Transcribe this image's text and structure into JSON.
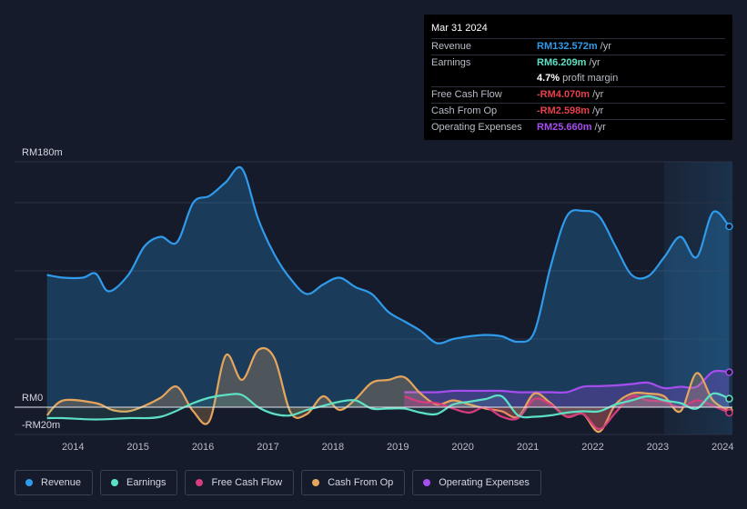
{
  "tooltip": {
    "date": "Mar 31 2024",
    "rows": [
      {
        "label": "Revenue",
        "value": "RM132.572m",
        "unit": "/yr",
        "color": "#2f9bea"
      },
      {
        "label": "Earnings",
        "value": "RM6.209m",
        "unit": "/yr",
        "color": "#5ee0c5"
      },
      {
        "label": "",
        "value": "4.7%",
        "unit": "profit margin",
        "color": "#ffffff"
      },
      {
        "label": "Free Cash Flow",
        "value": "-RM4.070m",
        "unit": "/yr",
        "color": "#e5414a"
      },
      {
        "label": "Cash From Op",
        "value": "-RM2.598m",
        "unit": "/yr",
        "color": "#e5414a"
      },
      {
        "label": "Operating Expenses",
        "value": "RM25.660m",
        "unit": "/yr",
        "color": "#a64df0"
      }
    ]
  },
  "legend": [
    {
      "label": "Revenue",
      "color": "#2f9bea"
    },
    {
      "label": "Earnings",
      "color": "#5ee0c5"
    },
    {
      "label": "Free Cash Flow",
      "color": "#d63d7f"
    },
    {
      "label": "Cash From Op",
      "color": "#e6a55c"
    },
    {
      "label": "Operating Expenses",
      "color": "#a64df0"
    }
  ],
  "chart_data": {
    "type": "line",
    "title": "",
    "ylim": [
      -20,
      180
    ],
    "y_tick_labels": [
      "RM180m",
      "RM0",
      "-RM20m"
    ],
    "x_tick_labels": [
      "2014",
      "2015",
      "2016",
      "2017",
      "2018",
      "2019",
      "2020",
      "2021",
      "2022",
      "2023",
      "2024"
    ],
    "x_range": [
      2013.25,
      2024.3
    ],
    "highlight_start": 2023.25,
    "series": [
      {
        "name": "Revenue",
        "color": "#2f9bea",
        "x": [
          2013.75,
          2014.0,
          2014.3,
          2014.5,
          2014.7,
          2015.0,
          2015.25,
          2015.5,
          2015.75,
          2016.0,
          2016.25,
          2016.5,
          2016.75,
          2017.0,
          2017.25,
          2017.5,
          2017.75,
          2018.0,
          2018.25,
          2018.5,
          2018.75,
          2019.0,
          2019.25,
          2019.5,
          2019.75,
          2020.0,
          2020.25,
          2020.5,
          2020.75,
          2021.0,
          2021.25,
          2021.5,
          2021.75,
          2022.0,
          2022.25,
          2022.5,
          2022.75,
          2023.0,
          2023.25,
          2023.5,
          2023.75,
          2024.0,
          2024.25
        ],
        "y": [
          97,
          95,
          95,
          98,
          85,
          97,
          118,
          125,
          121,
          150,
          155,
          165,
          175,
          138,
          112,
          94,
          83,
          90,
          95,
          88,
          83,
          70,
          63,
          56,
          47,
          50,
          52,
          53,
          52,
          48,
          55,
          103,
          140,
          144,
          140,
          118,
          97,
          96,
          110,
          125,
          110,
          143,
          132.572
        ]
      },
      {
        "name": "Earnings",
        "color": "#5ee0c5",
        "x": [
          2013.75,
          2014.0,
          2014.5,
          2015.0,
          2015.5,
          2016.0,
          2016.25,
          2016.5,
          2016.75,
          2017.0,
          2017.25,
          2017.5,
          2017.75,
          2018.0,
          2018.25,
          2018.5,
          2018.75,
          2019.0,
          2019.25,
          2019.5,
          2019.75,
          2020.0,
          2020.25,
          2020.5,
          2020.75,
          2021.0,
          2021.25,
          2021.5,
          2021.75,
          2022.0,
          2022.25,
          2022.5,
          2022.75,
          2023.0,
          2023.25,
          2023.5,
          2023.75,
          2024.0,
          2024.25
        ],
        "y": [
          -8,
          -8,
          -9,
          -8,
          -7,
          3,
          7,
          9,
          9,
          0,
          -5,
          -6,
          -2,
          1,
          4,
          5,
          -1,
          -1,
          -1,
          -4,
          -5,
          2,
          4,
          6,
          8,
          -6,
          -7,
          -6,
          -4,
          -3,
          -3,
          2,
          5,
          8,
          5,
          3,
          -1,
          10,
          6.209
        ]
      },
      {
        "name": "Free Cash Flow",
        "color": "#d63d7f",
        "x": [
          2019.25,
          2019.5,
          2019.75,
          2020.0,
          2020.25,
          2020.5,
          2020.75,
          2021.0,
          2021.25,
          2021.5,
          2021.75,
          2022.0,
          2022.25,
          2022.5,
          2022.75,
          2023.0,
          2023.25,
          2023.5,
          2023.75,
          2024.0,
          2024.25
        ],
        "y": [
          8,
          4,
          3,
          -1,
          -4,
          0,
          -7,
          -8,
          6,
          2,
          -7,
          -5,
          -16,
          -4,
          8,
          5,
          4,
          0,
          5,
          1,
          -4.07
        ]
      },
      {
        "name": "Cash From Op",
        "color": "#e6a55c",
        "x": [
          2013.75,
          2014.0,
          2014.5,
          2014.75,
          2015.0,
          2015.25,
          2015.5,
          2015.75,
          2016.0,
          2016.25,
          2016.5,
          2016.75,
          2017.0,
          2017.25,
          2017.5,
          2017.75,
          2018.0,
          2018.25,
          2018.5,
          2018.75,
          2019.0,
          2019.25,
          2019.5,
          2019.75,
          2020.0,
          2020.25,
          2020.5,
          2020.75,
          2021.0,
          2021.25,
          2021.5,
          2021.75,
          2022.0,
          2022.25,
          2022.5,
          2022.75,
          2023.0,
          2023.25,
          2023.5,
          2023.75,
          2024.0,
          2024.25
        ],
        "y": [
          -6,
          5,
          3,
          -2,
          -3,
          1,
          7,
          15,
          -3,
          -10,
          38,
          20,
          42,
          36,
          -4,
          -5,
          8,
          -2,
          6,
          18,
          20,
          22,
          10,
          2,
          5,
          2,
          -1,
          -3,
          -7,
          10,
          3,
          -7,
          -5,
          -18,
          2,
          10,
          10,
          8,
          -3,
          25,
          5,
          -2.598
        ]
      },
      {
        "name": "Operating Expenses",
        "color": "#a64df0",
        "x": [
          2019.25,
          2019.5,
          2019.75,
          2020.0,
          2020.25,
          2020.5,
          2020.75,
          2021.0,
          2021.25,
          2021.5,
          2021.75,
          2022.0,
          2022.25,
          2022.5,
          2022.75,
          2023.0,
          2023.25,
          2023.5,
          2023.75,
          2024.0,
          2024.25
        ],
        "y": [
          11,
          11,
          11,
          12,
          12,
          12,
          12,
          11,
          11,
          11,
          11,
          15,
          15.5,
          16,
          17,
          18,
          14,
          15,
          15,
          26,
          25.66
        ]
      }
    ]
  }
}
